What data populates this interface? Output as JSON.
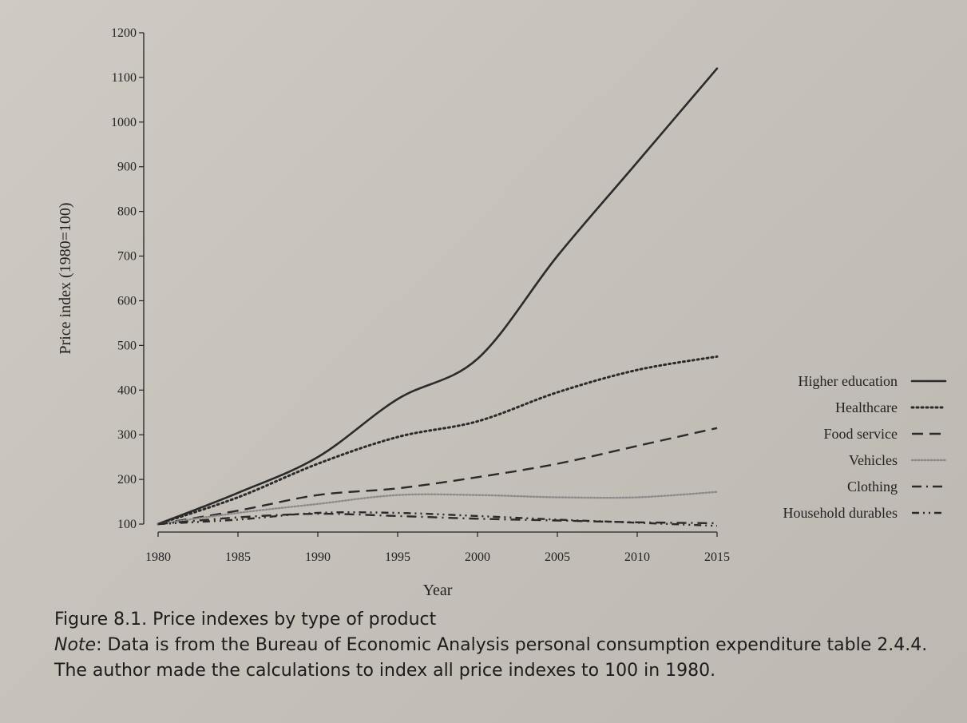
{
  "chart_data": {
    "type": "line",
    "title": "",
    "xlabel": "Year",
    "ylabel": "Price index (1980=100)",
    "xlim": [
      1980,
      2015
    ],
    "ylim": [
      100,
      1200
    ],
    "xticks": [
      1980,
      1985,
      1990,
      1995,
      2000,
      2005,
      2010,
      2015
    ],
    "yticks": [
      100,
      200,
      300,
      400,
      500,
      600,
      700,
      800,
      900,
      1000,
      1100,
      1200
    ],
    "grid": false,
    "legend_position": "right",
    "x": [
      1980,
      1985,
      1990,
      1995,
      2000,
      2005,
      2010,
      2015
    ],
    "series": [
      {
        "name": "Higher education",
        "style": "solid",
        "color": "#2b2b2b",
        "values": [
          100,
          170,
          250,
          380,
          470,
          700,
          910,
          1120
        ]
      },
      {
        "name": "Healthcare",
        "style": "dotted",
        "color": "#2b2b2b",
        "values": [
          100,
          160,
          235,
          295,
          330,
          395,
          445,
          475
        ]
      },
      {
        "name": "Food service",
        "style": "dashed",
        "color": "#2b2b2b",
        "values": [
          100,
          130,
          165,
          180,
          205,
          235,
          275,
          315
        ]
      },
      {
        "name": "Vehicles",
        "style": "dotted-light",
        "color": "#8a8a8a",
        "values": [
          100,
          125,
          145,
          165,
          165,
          160,
          160,
          172
        ]
      },
      {
        "name": "Clothing",
        "style": "dash-dot",
        "color": "#2b2b2b",
        "values": [
          100,
          115,
          123,
          118,
          112,
          108,
          104,
          102
        ]
      },
      {
        "name": "Household durables",
        "style": "dash-dot-dot",
        "color": "#2b2b2b",
        "values": [
          100,
          110,
          125,
          125,
          118,
          110,
          103,
          96
        ]
      }
    ]
  },
  "caption": {
    "figure": "Figure 8.1. Price indexes by type of product",
    "note_label": "Note",
    "note_text": ": Data is from the Bureau of Economic Analysis personal consumption expenditure table 2.4.4. The author made the calculations to index all price indexes to 100 in 1980."
  }
}
